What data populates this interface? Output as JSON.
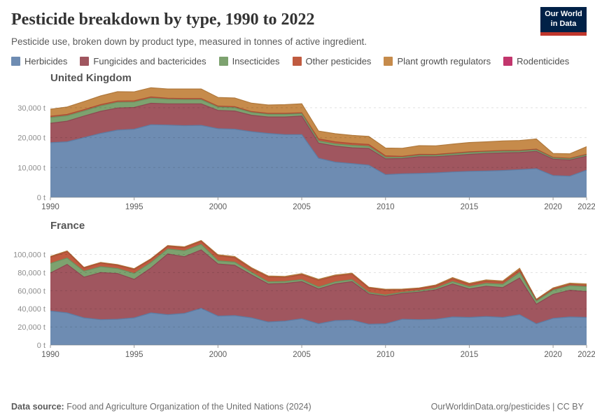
{
  "header": {
    "title": "Pesticide breakdown by type, 1990 to 2022",
    "subtitle": "Pesticide use, broken down by product type, measured in tonnes of active ingredient.",
    "logo": {
      "line1": "Our World",
      "line2": "in Data"
    }
  },
  "legend": [
    {
      "label": "Herbicides",
      "fill": "#6e8cb2",
      "stroke": "#5e7ca3"
    },
    {
      "label": "Fungicides and bactericides",
      "fill": "#a0565f",
      "stroke": "#8d4851"
    },
    {
      "label": "Insecticides",
      "fill": "#7da26f",
      "stroke": "#6b9260"
    },
    {
      "label": "Other pesticides",
      "fill": "#c05b40",
      "stroke": "#a94d35"
    },
    {
      "label": "Plant growth regulators",
      "fill": "#c68b4b",
      "stroke": "#b0793c"
    },
    {
      "label": "Rodenticides",
      "fill": "#c2366d",
      "stroke": "#a82c5d"
    }
  ],
  "chart_data": [
    {
      "type": "area",
      "stacked": true,
      "entity": "United Kingdom",
      "unit": "t",
      "grid": "dashed-horizontal",
      "ylim": [
        0,
        37000
      ],
      "yticks": [
        0,
        10000,
        20000,
        30000
      ],
      "xticks": [
        1990,
        1995,
        2000,
        2005,
        2010,
        2015,
        2020,
        2022
      ],
      "x": [
        1990,
        1991,
        1992,
        1993,
        1994,
        1995,
        1996,
        1997,
        1998,
        1999,
        2000,
        2001,
        2002,
        2003,
        2004,
        2005,
        2006,
        2007,
        2008,
        2009,
        2010,
        2011,
        2012,
        2013,
        2014,
        2015,
        2016,
        2017,
        2018,
        2019,
        2020,
        2021,
        2022
      ],
      "series": [
        {
          "name": "Herbicides",
          "values": [
            18300,
            18600,
            20000,
            21400,
            22500,
            22800,
            24300,
            24200,
            24000,
            24100,
            23000,
            22800,
            22000,
            21400,
            21000,
            21000,
            13100,
            11800,
            11300,
            10800,
            7600,
            7900,
            8000,
            8200,
            8500,
            8700,
            8800,
            9000,
            9300,
            9600,
            7300,
            7100,
            9100
          ]
        },
        {
          "name": "Fungicides and bactericides",
          "values": [
            6500,
            6900,
            7200,
            7400,
            7400,
            7300,
            7200,
            7100,
            7300,
            7200,
            6100,
            6100,
            5500,
            5500,
            5900,
            6200,
            5100,
            5400,
            5300,
            5600,
            5300,
            5100,
            5600,
            5400,
            5500,
            5700,
            5900,
            5900,
            5700,
            5800,
            5500,
            5400,
            4700
          ]
        },
        {
          "name": "Insecticides",
          "values": [
            1900,
            1800,
            1700,
            1800,
            1900,
            1800,
            1700,
            1500,
            1400,
            1400,
            1100,
            1100,
            900,
            900,
            900,
            800,
            700,
            700,
            800,
            700,
            500,
            400,
            450,
            450,
            500,
            550,
            500,
            500,
            450,
            450,
            350,
            350,
            400
          ]
        },
        {
          "name": "Other pesticides",
          "values": [
            450,
            450,
            450,
            450,
            450,
            420,
            400,
            380,
            380,
            380,
            350,
            350,
            320,
            320,
            320,
            320,
            700,
            700,
            650,
            600,
            500,
            350,
            350,
            320,
            320,
            300,
            300,
            300,
            300,
            300,
            250,
            250,
            250
          ]
        },
        {
          "name": "Plant growth regulators",
          "values": [
            2350,
            2500,
            2700,
            2900,
            3100,
            3000,
            3100,
            3100,
            3200,
            3200,
            2900,
            2900,
            2800,
            2800,
            2900,
            3000,
            2600,
            2700,
            2700,
            2700,
            2600,
            2700,
            2900,
            2900,
            3000,
            3100,
            3100,
            3200,
            3300,
            3400,
            1300,
            1500,
            2500
          ]
        },
        {
          "name": "Rodenticides",
          "values": [
            30,
            30,
            30,
            30,
            30,
            30,
            30,
            30,
            30,
            30,
            30,
            30,
            30,
            30,
            30,
            30,
            30,
            30,
            30,
            30,
            30,
            30,
            30,
            30,
            30,
            30,
            30,
            30,
            30,
            30,
            30,
            30,
            30
          ]
        }
      ]
    },
    {
      "type": "area",
      "stacked": true,
      "entity": "France",
      "unit": "t",
      "grid": "dashed-horizontal",
      "ylim": [
        0,
        122000
      ],
      "yticks": [
        0,
        20000,
        40000,
        60000,
        80000,
        100000
      ],
      "xticks": [
        1990,
        1995,
        2000,
        2005,
        2010,
        2015,
        2020,
        2022
      ],
      "x": [
        1990,
        1991,
        1992,
        1993,
        1994,
        1995,
        1996,
        1997,
        1998,
        1999,
        2000,
        2001,
        2002,
        2003,
        2004,
        2005,
        2006,
        2007,
        2008,
        2009,
        2010,
        2011,
        2012,
        2013,
        2014,
        2015,
        2016,
        2017,
        2018,
        2019,
        2020,
        2021,
        2022
      ],
      "series": [
        {
          "name": "Herbicides",
          "values": [
            37500,
            35500,
            30000,
            28000,
            28500,
            30000,
            35500,
            33500,
            35000,
            40500,
            32000,
            32500,
            30000,
            25500,
            26500,
            29000,
            23500,
            27000,
            27500,
            23000,
            23500,
            28500,
            28000,
            28500,
            31000,
            30500,
            31500,
            30500,
            33500,
            23500,
            29500,
            31000,
            30500
          ]
        },
        {
          "name": "Fungicides and bactericides",
          "values": [
            42000,
            53500,
            45000,
            52000,
            50500,
            42500,
            49500,
            67000,
            62500,
            64500,
            57500,
            55500,
            47500,
            42000,
            41500,
            41000,
            38500,
            40500,
            42500,
            33500,
            30500,
            28500,
            30500,
            32500,
            36500,
            31500,
            33500,
            33000,
            40500,
            21500,
            26500,
            29500,
            28500
          ]
        },
        {
          "name": "Insecticides",
          "values": [
            10500,
            7000,
            6500,
            6500,
            5500,
            6500,
            6000,
            5500,
            6500,
            6000,
            3500,
            3500,
            2800,
            2200,
            2200,
            2200,
            2000,
            2200,
            2200,
            1500,
            1200,
            1200,
            1500,
            1800,
            2500,
            2500,
            3000,
            3500,
            6000,
            3500,
            4500,
            5000,
            5500
          ]
        },
        {
          "name": "Other pesticides",
          "values": [
            7000,
            7000,
            3500,
            4000,
            3500,
            4500,
            3500,
            3000,
            3500,
            3500,
            5500,
            5000,
            4000,
            5500,
            4500,
            5500,
            7500,
            6500,
            6000,
            5000,
            5500,
            2700,
            2200,
            2500,
            3200,
            2500,
            2700,
            2500,
            3000,
            1200,
            1500,
            1600,
            1700
          ]
        },
        {
          "name": "Plant growth regulators",
          "values": [
            900,
            900,
            800,
            800,
            800,
            800,
            800,
            900,
            900,
            900,
            1200,
            1200,
            1100,
            1100,
            1100,
            1100,
            1100,
            1100,
            1100,
            900,
            900,
            900,
            900,
            1000,
            1300,
            1200,
            1300,
            1300,
            1700,
            900,
            1100,
            1200,
            1300
          ]
        },
        {
          "name": "Rodenticides",
          "values": [
            20,
            20,
            20,
            20,
            20,
            20,
            20,
            20,
            20,
            20,
            20,
            20,
            20,
            20,
            20,
            20,
            20,
            20,
            20,
            20,
            20,
            20,
            20,
            20,
            20,
            20,
            20,
            20,
            20,
            20,
            20,
            20,
            20
          ]
        }
      ]
    }
  ],
  "footer": {
    "source_label": "Data source:",
    "source_text": " Food and Agriculture Organization of the United Nations (2024)",
    "right_text": "OurWorldinData.org/pesticides | CC BY"
  }
}
